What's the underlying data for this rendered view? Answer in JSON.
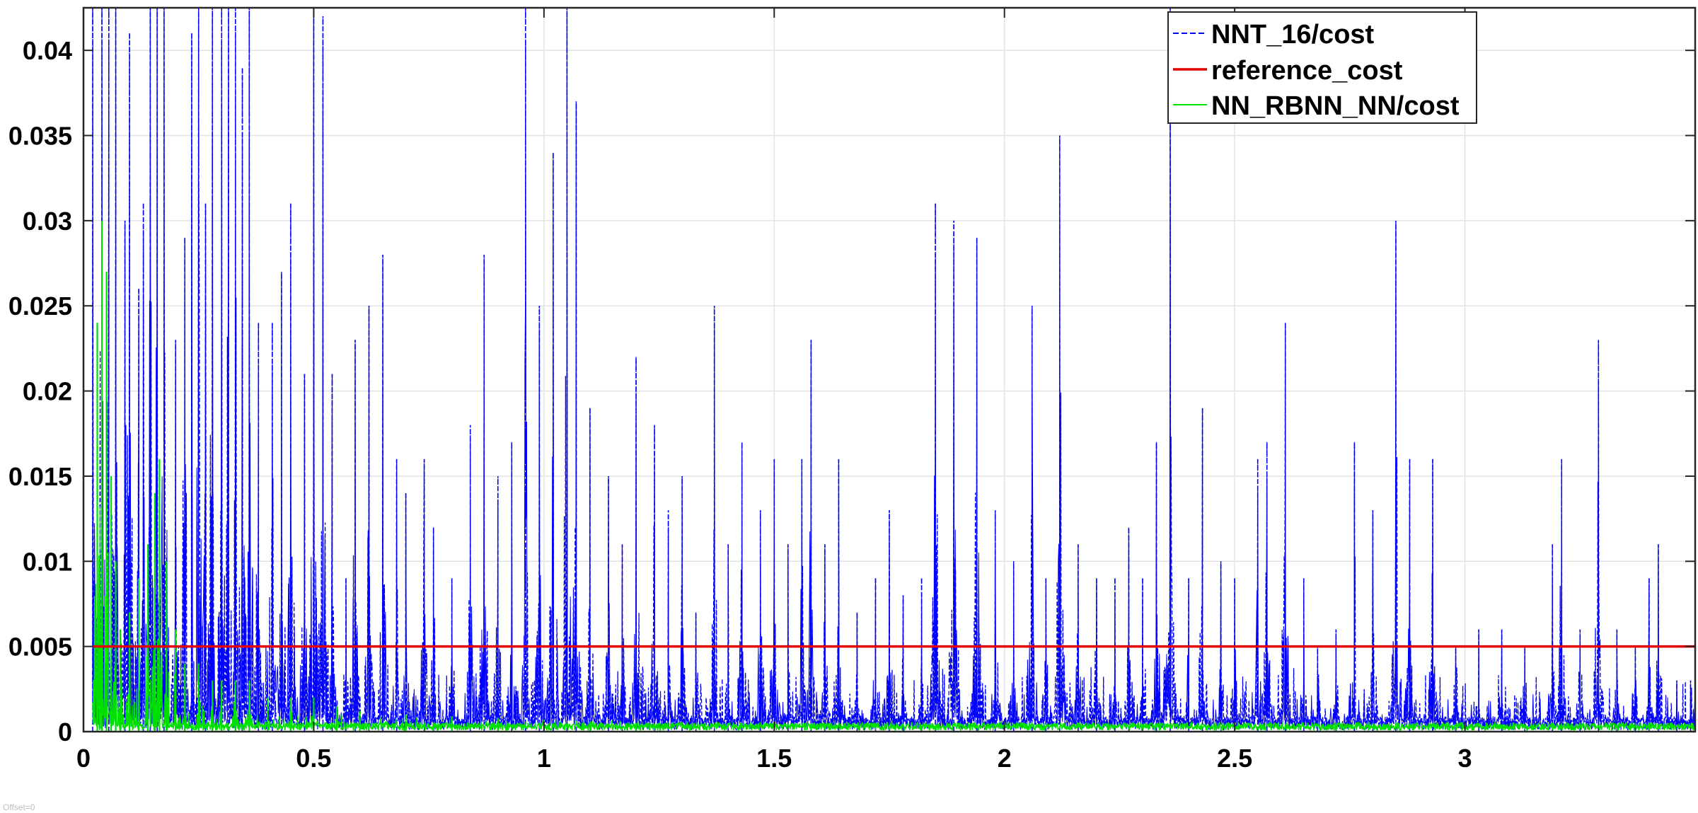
{
  "chart_data": {
    "type": "line",
    "title": "",
    "xlabel": "",
    "ylabel": "",
    "xlim": [
      0,
      3.5
    ],
    "ylim": [
      0,
      0.0425
    ],
    "x_ticks": [
      0,
      0.5,
      1,
      1.5,
      2,
      2.5,
      3
    ],
    "x_tick_labels": [
      "0",
      "0.5",
      "1",
      "1.5",
      "2",
      "2.5",
      "3"
    ],
    "y_ticks": [
      0,
      0.005,
      0.01,
      0.015,
      0.02,
      0.025,
      0.03,
      0.035,
      0.04
    ],
    "y_tick_labels": [
      "0",
      "0.005",
      "0.01",
      "0.015",
      "0.02",
      "0.025",
      "0.03",
      "0.035",
      "0.04"
    ],
    "grid": true,
    "legend_position": "top-right",
    "series": [
      {
        "name": "NNT_16/cost",
        "color": "#0000ff",
        "style": "dashed",
        "baseline": 0.0005,
        "peaks": [
          [
            0.02,
            0.045
          ],
          [
            0.04,
            0.045
          ],
          [
            0.055,
            0.045
          ],
          [
            0.07,
            0.043
          ],
          [
            0.09,
            0.03
          ],
          [
            0.1,
            0.041
          ],
          [
            0.12,
            0.026
          ],
          [
            0.13,
            0.031
          ],
          [
            0.145,
            0.045
          ],
          [
            0.16,
            0.045
          ],
          [
            0.175,
            0.045
          ],
          [
            0.2,
            0.023
          ],
          [
            0.22,
            0.029
          ],
          [
            0.235,
            0.041
          ],
          [
            0.25,
            0.045
          ],
          [
            0.265,
            0.031
          ],
          [
            0.28,
            0.045
          ],
          [
            0.3,
            0.045
          ],
          [
            0.315,
            0.045
          ],
          [
            0.33,
            0.043
          ],
          [
            0.345,
            0.039
          ],
          [
            0.36,
            0.045
          ],
          [
            0.38,
            0.024
          ],
          [
            0.41,
            0.024
          ],
          [
            0.43,
            0.027
          ],
          [
            0.45,
            0.031
          ],
          [
            0.48,
            0.021
          ],
          [
            0.5,
            0.045
          ],
          [
            0.52,
            0.042
          ],
          [
            0.54,
            0.021
          ],
          [
            0.57,
            0.009
          ],
          [
            0.59,
            0.023
          ],
          [
            0.62,
            0.025
          ],
          [
            0.65,
            0.028
          ],
          [
            0.68,
            0.016
          ],
          [
            0.7,
            0.014
          ],
          [
            0.74,
            0.016
          ],
          [
            0.76,
            0.012
          ],
          [
            0.8,
            0.009
          ],
          [
            0.84,
            0.018
          ],
          [
            0.87,
            0.028
          ],
          [
            0.9,
            0.015
          ],
          [
            0.93,
            0.017
          ],
          [
            0.96,
            0.045
          ],
          [
            0.99,
            0.025
          ],
          [
            1.02,
            0.034
          ],
          [
            1.05,
            0.045
          ],
          [
            1.07,
            0.037
          ],
          [
            1.1,
            0.019
          ],
          [
            1.14,
            0.015
          ],
          [
            1.17,
            0.011
          ],
          [
            1.2,
            0.022
          ],
          [
            1.24,
            0.018
          ],
          [
            1.27,
            0.013
          ],
          [
            1.3,
            0.015
          ],
          [
            1.33,
            0.007
          ],
          [
            1.37,
            0.025
          ],
          [
            1.4,
            0.011
          ],
          [
            1.43,
            0.017
          ],
          [
            1.47,
            0.013
          ],
          [
            1.5,
            0.016
          ],
          [
            1.53,
            0.011
          ],
          [
            1.56,
            0.016
          ],
          [
            1.58,
            0.023
          ],
          [
            1.61,
            0.011
          ],
          [
            1.64,
            0.016
          ],
          [
            1.68,
            0.007
          ],
          [
            1.72,
            0.009
          ],
          [
            1.75,
            0.013
          ],
          [
            1.78,
            0.008
          ],
          [
            1.82,
            0.009
          ],
          [
            1.85,
            0.031
          ],
          [
            1.89,
            0.03
          ],
          [
            1.94,
            0.029
          ],
          [
            1.98,
            0.013
          ],
          [
            2.02,
            0.01
          ],
          [
            2.06,
            0.025
          ],
          [
            2.09,
            0.009
          ],
          [
            2.12,
            0.035
          ],
          [
            2.16,
            0.011
          ],
          [
            2.2,
            0.009
          ],
          [
            2.24,
            0.009
          ],
          [
            2.27,
            0.012
          ],
          [
            2.3,
            0.009
          ],
          [
            2.33,
            0.017
          ],
          [
            2.36,
            0.045
          ],
          [
            2.4,
            0.009
          ],
          [
            2.43,
            0.019
          ],
          [
            2.47,
            0.01
          ],
          [
            2.5,
            0.009
          ],
          [
            2.55,
            0.016
          ],
          [
            2.57,
            0.017
          ],
          [
            2.61,
            0.024
          ],
          [
            2.65,
            0.009
          ],
          [
            2.68,
            0.005
          ],
          [
            2.72,
            0.006
          ],
          [
            2.76,
            0.017
          ],
          [
            2.8,
            0.013
          ],
          [
            2.85,
            0.03
          ],
          [
            2.88,
            0.016
          ],
          [
            2.93,
            0.016
          ],
          [
            2.98,
            0.005
          ],
          [
            3.03,
            0.006
          ],
          [
            3.08,
            0.006
          ],
          [
            3.13,
            0.005
          ],
          [
            3.19,
            0.011
          ],
          [
            3.21,
            0.016
          ],
          [
            3.25,
            0.006
          ],
          [
            3.29,
            0.023
          ],
          [
            3.33,
            0.006
          ],
          [
            3.37,
            0.005
          ],
          [
            3.4,
            0.009
          ],
          [
            3.42,
            0.011
          ],
          [
            3.46,
            0.003
          ],
          [
            3.49,
            0.003
          ]
        ]
      },
      {
        "name": "reference_cost",
        "color": "#e00000",
        "style": "solid",
        "x": [
          0.02,
          3.5
        ],
        "y": [
          0.005,
          0.005
        ]
      },
      {
        "name": "NN_RBNN_NN/cost",
        "color": "#00e000",
        "style": "solid",
        "baseline": 0.0003,
        "peaks": [
          [
            0.03,
            0.024
          ],
          [
            0.04,
            0.03
          ],
          [
            0.05,
            0.027
          ],
          [
            0.06,
            0.015
          ],
          [
            0.07,
            0.01
          ],
          [
            0.08,
            0.006
          ],
          [
            0.1,
            0.007
          ],
          [
            0.12,
            0.009
          ],
          [
            0.14,
            0.011
          ],
          [
            0.155,
            0.014
          ],
          [
            0.165,
            0.016
          ],
          [
            0.18,
            0.01
          ],
          [
            0.2,
            0.006
          ],
          [
            0.22,
            0.004
          ],
          [
            0.25,
            0.004
          ],
          [
            0.28,
            0.003
          ],
          [
            0.3,
            0.003
          ],
          [
            0.33,
            0.003
          ],
          [
            0.36,
            0.003
          ],
          [
            0.4,
            0.002
          ],
          [
            0.45,
            0.002
          ],
          [
            0.5,
            0.002
          ],
          [
            0.55,
            0.0015
          ],
          [
            0.6,
            0.0012
          ],
          [
            0.7,
            0.001
          ],
          [
            0.8,
            0.0009
          ],
          [
            0.9,
            0.0008
          ],
          [
            1.0,
            0.0007
          ],
          [
            1.1,
            0.0006
          ],
          [
            1.2,
            0.0005
          ]
        ]
      }
    ],
    "offset_label": "Offset=0"
  }
}
